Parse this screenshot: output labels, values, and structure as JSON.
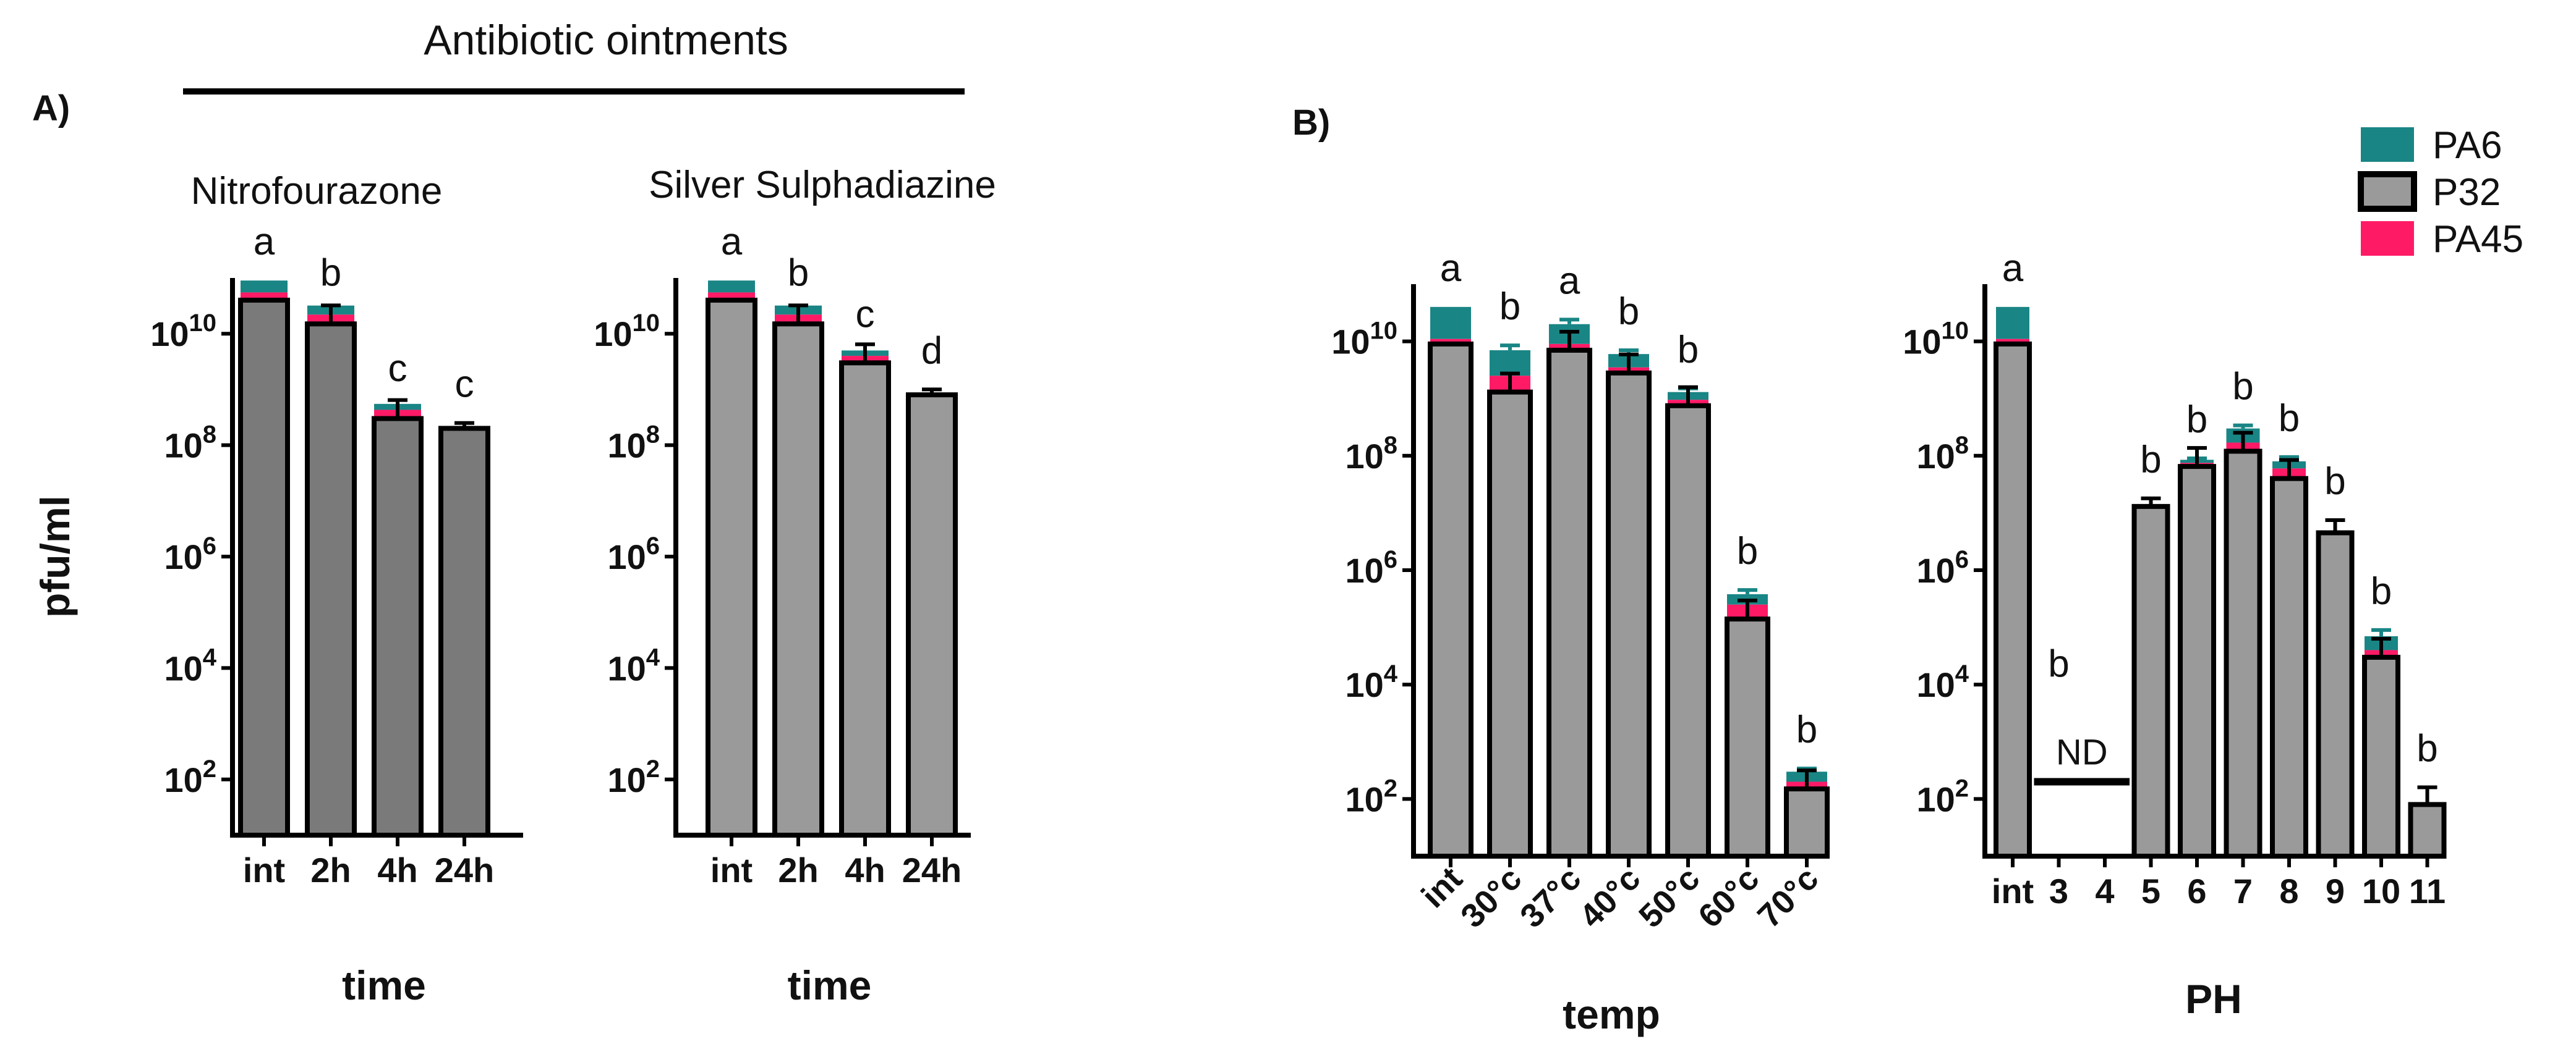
{
  "figure": {
    "header_title": "Antibiotic ointments",
    "panel_a_label": "A)",
    "panel_b_label": "B)"
  },
  "colors": {
    "PA6": "#1a8585",
    "P32": "#9a9a9a",
    "P32_dark": "#7a7a7a",
    "PA45": "#ff1a66",
    "outline": "#000000"
  },
  "legend": {
    "entries": [
      {
        "name": "PA6",
        "color": "#1a8585"
      },
      {
        "name": "P32",
        "color": "#9a9a9a"
      },
      {
        "name": "PA45",
        "color": "#ff1a66"
      }
    ]
  },
  "chart_data": [
    {
      "type": "bar",
      "title": "Nitrofourazone",
      "xlabel": "time",
      "ylabel": "pfu/ml",
      "yscale": "log",
      "ylim_log10": [
        1,
        11
      ],
      "yticks": [
        "10^2",
        "10^4",
        "10^6",
        "10^8",
        "10^10"
      ],
      "categories": [
        "int",
        "2h",
        "4h",
        "24h"
      ],
      "series": [
        {
          "name": "P32",
          "values": [
            40000000000,
            15000000000,
            300000000,
            200000000
          ]
        },
        {
          "name": "PA45",
          "values": [
            55000000000,
            22000000000,
            430000000,
            null
          ]
        },
        {
          "name": "PA6",
          "values": [
            90000000000,
            32000000000,
            550000000,
            null
          ]
        }
      ],
      "error_top": [
        null,
        25000000000,
        480000000,
        250000000
      ],
      "letters": [
        "a",
        "b",
        "c",
        "c"
      ]
    },
    {
      "type": "bar",
      "title": "Silver Sulphadiazine",
      "xlabel": "time",
      "ylabel": "",
      "yscale": "log",
      "ylim_log10": [
        1,
        11
      ],
      "yticks": [
        "10^2",
        "10^4",
        "10^6",
        "10^8",
        "10^10"
      ],
      "categories": [
        "int",
        "2h",
        "4h",
        "24h"
      ],
      "series": [
        {
          "name": "P32",
          "values": [
            40000000000,
            15000000000,
            3000000000,
            800000000
          ]
        },
        {
          "name": "PA45",
          "values": [
            55000000000,
            22000000000,
            4000000000,
            null
          ]
        },
        {
          "name": "PA6",
          "values": [
            90000000000,
            32000000000,
            5000000000,
            null
          ]
        }
      ],
      "error_top": [
        null,
        25000000000,
        4500000000,
        1000000000
      ],
      "letters": [
        "a",
        "b",
        "c",
        "d"
      ]
    },
    {
      "type": "bar",
      "title": "",
      "xlabel": "temp",
      "ylabel": "",
      "yscale": "log",
      "ylim_log10": [
        1,
        11
      ],
      "yticks": [
        "10^2",
        "10^4",
        "10^6",
        "10^8",
        "10^10"
      ],
      "categories": [
        "int",
        "30°c",
        "37°c",
        "40°c",
        "50°c",
        "60°c",
        "70°c"
      ],
      "rotate_ticks": true,
      "series": [
        {
          "name": "P32",
          "values": [
            9000000000,
            1300000000,
            7000000000,
            2800000000,
            750000000,
            140000,
            150
          ]
        },
        {
          "name": "PA45",
          "values": [
            11000000000,
            2500000000,
            9000000000,
            3500000000,
            950000000,
            250000,
            200
          ]
        },
        {
          "name": "PA6",
          "values": [
            40000000000,
            7000000000,
            20000000000,
            6000000000,
            1300000000,
            380000,
            300
          ]
        }
      ],
      "error_top": [
        null,
        8500000000,
        24000000000,
        7000000000,
        1500000000,
        450000,
        340
      ],
      "letters": [
        "a",
        "b",
        "a",
        "b",
        "b",
        "b",
        "b"
      ]
    },
    {
      "type": "bar",
      "title": "",
      "xlabel": "PH",
      "ylabel": "",
      "yscale": "log",
      "ylim_log10": [
        1,
        11
      ],
      "yticks": [
        "10^2",
        "10^4",
        "10^6",
        "10^8",
        "10^10"
      ],
      "categories": [
        "int",
        "3",
        "4",
        "5",
        "6",
        "7",
        "8",
        "9",
        "10",
        "11"
      ],
      "series": [
        {
          "name": "P32",
          "values": [
            9000000000,
            null,
            null,
            13000000,
            65000000,
            120000000,
            40000000,
            4500000,
            30000,
            80
          ]
        },
        {
          "name": "PA45",
          "values": [
            11000000000,
            null,
            null,
            null,
            75000000,
            170000000,
            60000000,
            null,
            40000,
            null
          ]
        },
        {
          "name": "PA6",
          "values": [
            40000000000,
            null,
            null,
            null,
            85000000,
            300000000,
            80000000,
            null,
            70000,
            null
          ]
        }
      ],
      "error_top": [
        null,
        null,
        null,
        18000000,
        90000000,
        340000000,
        95000000,
        7500000,
        90000,
        160
      ],
      "letters": [
        "a",
        "b",
        "",
        "b",
        "b",
        "b",
        "b",
        "b",
        "b",
        "b"
      ],
      "annotation": {
        "text": "ND",
        "from_category": "3",
        "to_category": "4",
        "value": 200
      }
    }
  ]
}
